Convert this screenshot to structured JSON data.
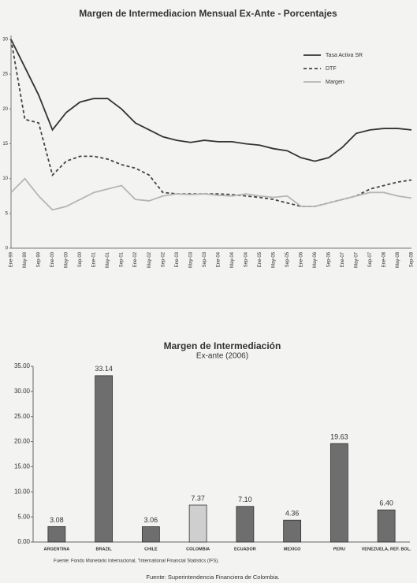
{
  "chart_data": [
    {
      "type": "line",
      "title": "Margen de Intermediacion Mensual Ex-Ante - Porcentajes",
      "categories": [
        "Ene-99",
        "May-99",
        "Sep-99",
        "Ene-00",
        "May-00",
        "Sep-00",
        "Ene-01",
        "May-01",
        "Sep-01",
        "Ene-02",
        "May-02",
        "Sep-02",
        "Ene-03",
        "May-03",
        "Sep-03",
        "Ene-04",
        "May-04",
        "Sep-04",
        "Ene-05",
        "May-05",
        "Sep-05",
        "Ene-06",
        "May-06",
        "Sep-06",
        "Ene-07",
        "May-07",
        "Sep-07",
        "Ene-08",
        "May-08",
        "Sep-08"
      ],
      "series": [
        {
          "name": "Tasa Activa SR",
          "color": "#333333",
          "values": [
            30,
            26,
            22,
            17,
            19.5,
            21,
            21.5,
            21.5,
            20,
            18,
            17,
            16,
            15.5,
            15.2,
            15.5,
            15.3,
            15.3,
            15,
            14.8,
            14.3,
            14,
            13,
            12.5,
            13,
            14.5,
            16.5,
            17,
            17.2,
            17.2,
            17
          ]
        },
        {
          "name": "DTF",
          "color": "#444444",
          "dash": true,
          "values": [
            30,
            18.5,
            18,
            10.5,
            12.5,
            13.2,
            13.2,
            12.8,
            12,
            11.5,
            10.5,
            8,
            7.8,
            7.8,
            7.8,
            7.8,
            7.7,
            7.5,
            7.3,
            7,
            6.5,
            6,
            6,
            6.5,
            7,
            7.5,
            8.5,
            9,
            9.5,
            9.8
          ]
        },
        {
          "name": "Margen",
          "color": "#b5b5b5",
          "values": [
            8,
            10,
            7.5,
            5.5,
            6,
            7,
            8,
            8.5,
            9,
            7,
            6.8,
            7.5,
            7.8,
            7.7,
            7.8,
            7.6,
            7.5,
            7.8,
            7.5,
            7.3,
            7.5,
            6,
            6,
            6.5,
            7,
            7.5,
            8,
            8,
            7.5,
            7.2
          ]
        }
      ],
      "ylim": [
        0,
        30
      ],
      "yticks": [
        0,
        5,
        10,
        15,
        20,
        25,
        30
      ],
      "legend": "top-right"
    },
    {
      "type": "bar",
      "title": "Margen de Intermediación",
      "subtitle": "Ex-ante (2006)",
      "categories": [
        "ARGENTINA",
        "BRAZIL",
        "CHILE",
        "COLOMBIA",
        "ECUADOR",
        "MEXICO",
        "PERU",
        "VENEZUELA, REF. BOL."
      ],
      "values": [
        3.08,
        33.14,
        3.06,
        7.37,
        7.1,
        4.36,
        19.63,
        6.4
      ],
      "value_labels": [
        "3.08",
        "33.14",
        "3.06",
        "7.37",
        "7.10",
        "4.36",
        "19.63",
        "6.40"
      ],
      "colors": [
        "#6e6e6e",
        "#6e6e6e",
        "#6e6e6e",
        "#cfcfcf",
        "#6e6e6e",
        "#6e6e6e",
        "#6e6e6e",
        "#6e6e6e"
      ],
      "ylim": [
        0,
        35
      ],
      "yticks": [
        {
          "value": 0,
          "label": "0.00"
        },
        {
          "value": 5,
          "label": "5.00"
        },
        {
          "value": 10,
          "label": "10.00"
        },
        {
          "value": 15,
          "label": "15.00"
        },
        {
          "value": 20,
          "label": "20.00"
        },
        {
          "value": 25,
          "label": "25.00"
        },
        {
          "value": 30,
          "label": "30.00"
        },
        {
          "value": 35,
          "label": "35.00"
        }
      ],
      "note": "Fuente: Fondo Monetario Internacional, \"International Financial Statistics (IFS).",
      "source": "Fuente: Superintendencia Financiera de Colombia."
    }
  ]
}
